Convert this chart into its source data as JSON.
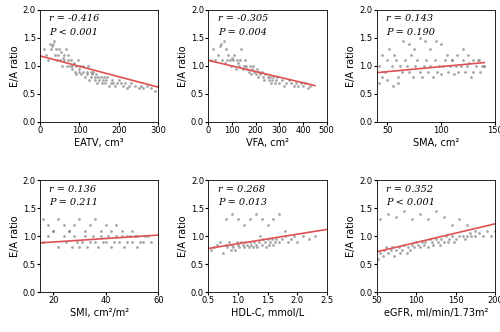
{
  "panels": [
    {
      "r": "r = -0.416",
      "p": "P < 0.001",
      "xlabel": "EATV, cm³",
      "xlim": [
        0,
        300
      ],
      "xticks": [
        0,
        100,
        200,
        300
      ],
      "line_x": [
        0,
        300
      ],
      "line_y": [
        1.18,
        0.62
      ],
      "scatter_x": [
        10,
        15,
        20,
        25,
        28,
        30,
        32,
        35,
        38,
        40,
        42,
        45,
        48,
        50,
        52,
        55,
        58,
        60,
        62,
        65,
        68,
        70,
        72,
        75,
        78,
        80,
        82,
        85,
        88,
        90,
        92,
        95,
        98,
        100,
        102,
        105,
        108,
        110,
        115,
        118,
        120,
        122,
        125,
        128,
        130,
        132,
        135,
        138,
        140,
        142,
        145,
        148,
        150,
        155,
        158,
        160,
        162,
        165,
        168,
        170,
        175,
        180,
        182,
        185,
        190,
        195,
        200,
        205,
        210,
        215,
        220,
        225,
        230,
        240,
        250,
        255,
        260,
        270,
        280,
        290,
        300
      ],
      "scatter_y": [
        1.3,
        1.2,
        1.1,
        1.4,
        1.3,
        1.35,
        1.4,
        1.45,
        1.2,
        1.3,
        1.1,
        1.2,
        1.3,
        1.1,
        1.25,
        1.0,
        1.15,
        1.2,
        1.1,
        1.3,
        1.0,
        1.1,
        1.2,
        1.0,
        1.1,
        0.95,
        1.0,
        1.05,
        0.9,
        1.0,
        0.85,
        1.1,
        0.9,
        0.95,
        1.0,
        0.85,
        0.9,
        1.0,
        0.8,
        0.9,
        0.85,
        1.0,
        0.75,
        0.9,
        0.8,
        0.85,
        0.9,
        0.75,
        0.8,
        0.85,
        0.7,
        0.8,
        0.75,
        0.8,
        0.7,
        0.75,
        0.8,
        0.7,
        0.75,
        0.8,
        0.65,
        0.7,
        0.75,
        0.7,
        0.65,
        0.7,
        0.75,
        0.7,
        0.65,
        0.7,
        0.6,
        0.65,
        0.7,
        0.65,
        0.6,
        0.65,
        0.6,
        0.65,
        0.6,
        0.55,
        0.65
      ]
    },
    {
      "r": "r = -0.305",
      "p": "P = 0.004",
      "xlabel": "VFA, cm²",
      "xlim": [
        0,
        500
      ],
      "xticks": [
        0,
        100,
        200,
        300,
        400,
        500
      ],
      "line_x": [
        0,
        450
      ],
      "line_y": [
        1.1,
        0.65
      ],
      "scatter_x": [
        10,
        20,
        30,
        40,
        50,
        55,
        60,
        65,
        70,
        75,
        80,
        85,
        90,
        95,
        100,
        105,
        110,
        115,
        120,
        125,
        130,
        135,
        140,
        145,
        150,
        155,
        160,
        165,
        170,
        175,
        180,
        185,
        190,
        195,
        200,
        205,
        210,
        215,
        220,
        225,
        230,
        235,
        240,
        250,
        255,
        260,
        265,
        270,
        275,
        280,
        285,
        290,
        300,
        310,
        320,
        330,
        340,
        350,
        360,
        370,
        380,
        390,
        400,
        410,
        420,
        430
      ],
      "scatter_y": [
        1.1,
        1.3,
        1.1,
        1.2,
        1.35,
        1.4,
        1.1,
        1.45,
        1.05,
        1.3,
        1.1,
        1.2,
        1.1,
        1.0,
        1.15,
        1.1,
        1.2,
        0.95,
        1.1,
        1.05,
        1.0,
        1.1,
        1.3,
        0.95,
        1.0,
        1.1,
        1.0,
        0.95,
        0.9,
        1.0,
        0.85,
        0.95,
        1.0,
        0.9,
        0.85,
        0.95,
        0.8,
        0.9,
        0.85,
        0.9,
        0.8,
        0.75,
        0.85,
        0.8,
        0.75,
        0.8,
        0.7,
        0.75,
        0.8,
        0.7,
        0.75,
        0.8,
        0.7,
        0.75,
        0.65,
        0.7,
        0.75,
        0.7,
        0.65,
        0.7,
        0.65,
        0.7,
        0.65,
        0.7,
        0.6,
        0.65
      ]
    },
    {
      "r": "r = 0.143",
      "p": "P = 0.190",
      "xlabel": "SMA, cm²",
      "xlim": [
        40,
        150
      ],
      "xticks": [
        50,
        100,
        150
      ],
      "line_x": [
        40,
        140
      ],
      "line_y": [
        0.88,
        1.06
      ],
      "scatter_x": [
        42,
        45,
        48,
        50,
        52,
        54,
        56,
        58,
        60,
        62,
        64,
        66,
        68,
        70,
        72,
        74,
        76,
        78,
        80,
        82,
        84,
        86,
        88,
        90,
        92,
        94,
        96,
        98,
        100,
        102,
        104,
        106,
        108,
        110,
        112,
        114,
        116,
        118,
        120,
        122,
        124,
        126,
        128,
        130,
        132,
        134,
        136,
        138,
        140,
        42,
        45,
        50,
        55,
        60,
        65,
        70,
        75,
        80,
        85,
        90,
        95,
        100,
        105,
        110,
        115,
        120,
        125,
        130,
        135,
        140
      ],
      "scatter_y": [
        1.0,
        1.2,
        0.9,
        1.1,
        1.3,
        1.0,
        1.2,
        1.1,
        0.8,
        1.0,
        0.9,
        1.1,
        1.0,
        0.9,
        1.2,
        0.8,
        1.0,
        1.1,
        0.9,
        0.8,
        1.0,
        1.1,
        0.9,
        1.0,
        0.8,
        1.1,
        0.9,
        1.0,
        0.85,
        1.0,
        1.1,
        0.9,
        1.0,
        1.1,
        0.85,
        1.0,
        0.9,
        1.0,
        1.1,
        0.9,
        1.0,
        1.05,
        0.8,
        0.9,
        1.0,
        1.1,
        0.9,
        1.0,
        1.0,
        0.7,
        0.8,
        0.75,
        0.65,
        0.7,
        1.45,
        1.4,
        1.3,
        1.5,
        1.45,
        1.3,
        1.45,
        1.4,
        1.2,
        1.1,
        1.2,
        1.3,
        1.2,
        1.1,
        1.1,
        1.0
      ]
    },
    {
      "r": "r = 0.136",
      "p": "P = 0.211",
      "xlabel": "SMI, cm²/m²",
      "xlim": [
        15,
        60
      ],
      "xticks": [
        20,
        40,
        60
      ],
      "line_x": [
        15,
        60
      ],
      "line_y": [
        0.88,
        1.02
      ],
      "scatter_x": [
        16,
        18,
        20,
        22,
        24,
        25,
        26,
        27,
        28,
        29,
        30,
        31,
        32,
        33,
        34,
        35,
        36,
        37,
        38,
        39,
        40,
        41,
        42,
        43,
        44,
        45,
        46,
        47,
        48,
        49,
        50,
        51,
        52,
        53,
        55,
        57,
        16,
        18,
        20,
        22,
        24,
        26,
        28,
        30,
        32,
        34,
        36,
        38,
        40,
        42,
        44,
        46,
        48,
        50,
        52,
        54,
        56
      ],
      "scatter_y": [
        0.9,
        1.0,
        1.1,
        0.8,
        1.0,
        0.9,
        1.1,
        0.8,
        1.0,
        0.9,
        0.8,
        0.9,
        1.0,
        0.8,
        0.9,
        1.0,
        0.9,
        0.8,
        1.0,
        0.9,
        0.9,
        1.0,
        0.8,
        0.9,
        1.0,
        0.9,
        1.0,
        0.8,
        0.9,
        1.0,
        0.9,
        1.0,
        0.8,
        0.9,
        1.0,
        0.9,
        1.3,
        1.2,
        1.1,
        1.3,
        1.2,
        1.1,
        1.2,
        1.3,
        1.1,
        1.2,
        1.3,
        1.1,
        1.2,
        1.1,
        1.2,
        1.1,
        1.0,
        1.1,
        1.0,
        0.9,
        1.0
      ]
    },
    {
      "r": "r = 0.268",
      "p": "P = 0.013",
      "xlabel": "HDL-C, mmol/L",
      "xlim": [
        0.5,
        2.5
      ],
      "xticks": [
        0.5,
        1.0,
        1.5,
        2.0,
        2.5
      ],
      "line_x": [
        0.5,
        2.5
      ],
      "line_y": [
        0.78,
        1.12
      ],
      "scatter_x": [
        0.55,
        0.6,
        0.65,
        0.7,
        0.75,
        0.8,
        0.82,
        0.85,
        0.88,
        0.9,
        0.92,
        0.95,
        0.98,
        1.0,
        1.02,
        1.05,
        1.08,
        1.1,
        1.12,
        1.15,
        1.18,
        1.2,
        1.22,
        1.25,
        1.28,
        1.3,
        1.32,
        1.35,
        1.38,
        1.4,
        1.42,
        1.45,
        1.48,
        1.5,
        1.52,
        1.55,
        1.58,
        1.6,
        1.62,
        1.65,
        1.7,
        1.75,
        1.8,
        1.85,
        1.9,
        1.95,
        2.0,
        2.1,
        2.2,
        2.3,
        0.8,
        0.9,
        1.0,
        1.1,
        1.2,
        1.3,
        1.4,
        1.5,
        1.6,
        1.7,
        1.8
      ],
      "scatter_y": [
        0.75,
        0.8,
        0.85,
        0.9,
        0.7,
        0.85,
        0.8,
        0.9,
        0.75,
        0.85,
        0.8,
        0.75,
        0.9,
        0.85,
        0.8,
        0.9,
        0.85,
        0.8,
        0.9,
        0.85,
        0.8,
        0.9,
        0.85,
        0.8,
        0.9,
        0.85,
        0.8,
        0.9,
        1.0,
        0.85,
        0.95,
        0.9,
        0.8,
        0.95,
        0.85,
        0.9,
        0.95,
        0.85,
        0.9,
        0.95,
        0.9,
        0.95,
        1.0,
        0.9,
        0.95,
        1.0,
        0.9,
        1.0,
        0.95,
        1.0,
        1.3,
        1.4,
        1.3,
        1.2,
        1.3,
        1.4,
        1.3,
        1.2,
        1.3,
        1.4,
        1.1
      ]
    },
    {
      "r": "r = 0.352",
      "p": "P < 0.001",
      "xlabel": "eGFR, ml/min/1.73m²",
      "xlim": [
        50,
        200
      ],
      "xticks": [
        50,
        100,
        150,
        200
      ],
      "line_x": [
        50,
        200
      ],
      "line_y": [
        0.72,
        1.22
      ],
      "scatter_x": [
        52,
        55,
        58,
        60,
        62,
        65,
        68,
        70,
        72,
        75,
        78,
        80,
        82,
        85,
        88,
        90,
        92,
        95,
        98,
        100,
        102,
        105,
        108,
        110,
        112,
        115,
        118,
        120,
        122,
        125,
        128,
        130,
        132,
        135,
        138,
        140,
        142,
        145,
        148,
        150,
        155,
        160,
        162,
        165,
        168,
        170,
        175,
        180,
        185,
        190,
        195,
        200,
        55,
        65,
        75,
        85,
        95,
        105,
        115,
        125,
        135,
        145,
        155,
        165,
        175
      ],
      "scatter_y": [
        0.6,
        0.7,
        0.65,
        0.75,
        0.8,
        0.7,
        0.75,
        0.8,
        0.65,
        0.75,
        0.8,
        0.7,
        0.75,
        0.85,
        0.7,
        0.8,
        0.75,
        0.85,
        0.8,
        0.9,
        0.85,
        0.8,
        0.9,
        0.85,
        0.9,
        0.8,
        0.95,
        0.9,
        0.85,
        0.95,
        0.9,
        0.85,
        0.95,
        0.9,
        1.0,
        0.9,
        0.95,
        1.0,
        0.9,
        0.95,
        1.0,
        1.0,
        0.95,
        1.0,
        1.05,
        1.0,
        1.0,
        1.05,
        1.0,
        1.1,
        1.0,
        1.1,
        1.3,
        1.4,
        1.35,
        1.45,
        1.3,
        1.4,
        1.3,
        1.45,
        1.35,
        1.2,
        1.3,
        1.2,
        1.1
      ]
    }
  ],
  "ylim": [
    0.0,
    2.0
  ],
  "yticks": [
    0.0,
    0.5,
    1.0,
    1.5,
    2.0
  ],
  "ylabel": "E/A ratio",
  "scatter_color": "#808080",
  "line_color": "#e05050",
  "scatter_size": 4,
  "scatter_alpha": 0.7,
  "background_color": "#ffffff",
  "font_size_label": 7,
  "font_size_tick": 6,
  "font_size_annot": 7
}
